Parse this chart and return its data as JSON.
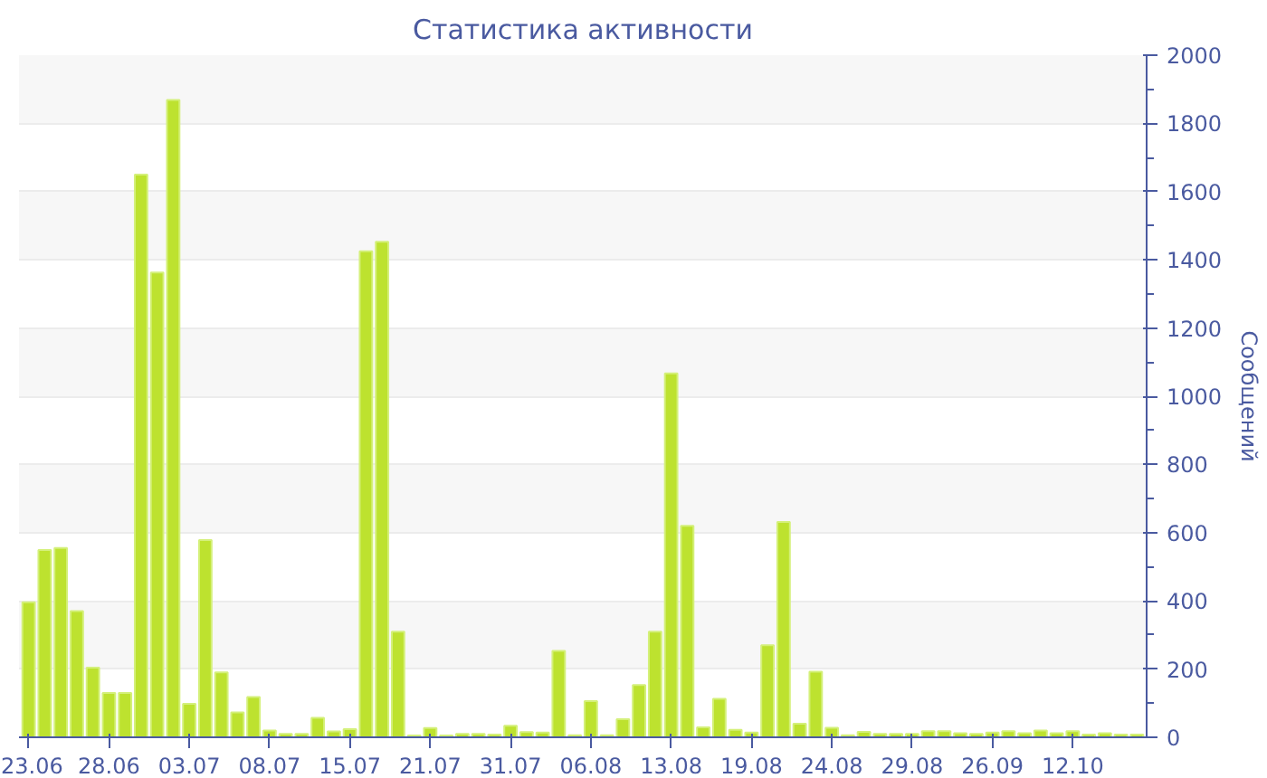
{
  "chart_data": {
    "type": "bar",
    "title": "Статистика активности",
    "ylabel": "Сообщений",
    "categories": [
      "23.06",
      null,
      null,
      null,
      null,
      "28.06",
      null,
      null,
      null,
      null,
      "03.07",
      null,
      null,
      null,
      null,
      "08.07",
      null,
      null,
      null,
      null,
      "15.07",
      null,
      null,
      null,
      null,
      "21.07",
      null,
      null,
      null,
      null,
      "31.07",
      null,
      null,
      null,
      null,
      "06.08",
      null,
      null,
      null,
      null,
      "13.08",
      null,
      null,
      null,
      null,
      "19.08",
      null,
      null,
      null,
      null,
      "24.08",
      null,
      null,
      null,
      null,
      "29.08",
      null,
      null,
      null,
      null,
      "26.09",
      null,
      null,
      null,
      null,
      "12.10",
      null,
      null,
      null,
      null
    ],
    "values": [
      396,
      549,
      555,
      370,
      204,
      130,
      130,
      1650,
      1363,
      1869,
      98,
      578,
      190,
      73,
      118,
      20,
      10,
      10,
      57,
      17,
      24,
      1425,
      1453,
      310,
      5,
      27,
      5,
      10,
      10,
      8,
      34,
      15,
      14,
      253,
      6,
      106,
      6,
      53,
      153,
      310,
      1067,
      620,
      29,
      113,
      22,
      14,
      270,
      631,
      40,
      192,
      28,
      6,
      16,
      10,
      10,
      10,
      18,
      18,
      12,
      10,
      14,
      18,
      12,
      20,
      12,
      18,
      8,
      12,
      8,
      8
    ],
    "color": "#bde22f",
    "ylim": [
      0,
      2000
    ],
    "yticks": [
      0,
      200,
      400,
      600,
      800,
      1000,
      1200,
      1400,
      1600,
      1800,
      2000
    ],
    "grid": "y"
  }
}
